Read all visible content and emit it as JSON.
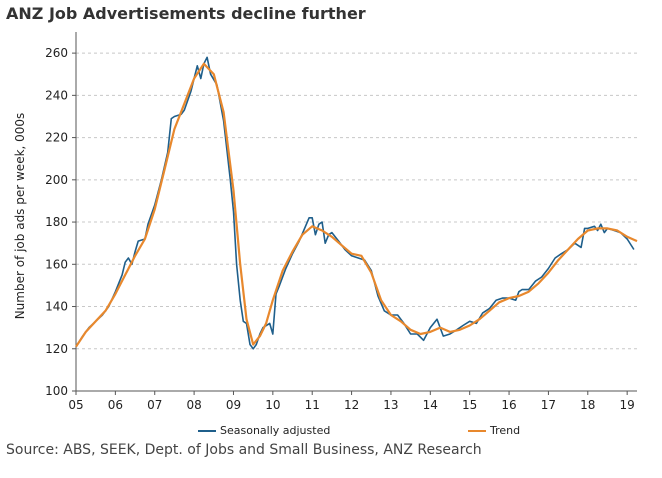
{
  "title": "ANZ Job Advertisements decline further",
  "source": "Source: ABS, SEEK, Dept. of Jobs and Small Business, ANZ Research",
  "chart_data": {
    "type": "line",
    "title": "ANZ Job Advertisements decline further",
    "xlabel": "",
    "ylabel": "Number of job ads per week, 000s",
    "ylim": [
      100,
      270
    ],
    "yticks": [
      100,
      120,
      140,
      160,
      180,
      200,
      220,
      240,
      260
    ],
    "xlim": [
      2005,
      2019.25
    ],
    "xticks": [
      2005,
      2006,
      2007,
      2008,
      2009,
      2010,
      2011,
      2012,
      2013,
      2014,
      2015,
      2016,
      2017,
      2018,
      2019
    ],
    "xtick_labels": [
      "05",
      "06",
      "07",
      "08",
      "09",
      "10",
      "11",
      "12",
      "13",
      "14",
      "15",
      "16",
      "17",
      "18",
      "19"
    ],
    "grid": "horizontal dashed",
    "series": [
      {
        "name": "Seasonally adjusted",
        "color": "#1f5f8b",
        "points": [
          [
            2005.0,
            121
          ],
          [
            2005.17,
            126
          ],
          [
            2005.33,
            130
          ],
          [
            2005.5,
            133
          ],
          [
            2005.67,
            136
          ],
          [
            2005.83,
            140
          ],
          [
            2006.0,
            147
          ],
          [
            2006.17,
            155
          ],
          [
            2006.25,
            161
          ],
          [
            2006.33,
            163
          ],
          [
            2006.42,
            160
          ],
          [
            2006.5,
            166
          ],
          [
            2006.58,
            171
          ],
          [
            2006.75,
            172
          ],
          [
            2006.83,
            179
          ],
          [
            2007.0,
            188
          ],
          [
            2007.17,
            200
          ],
          [
            2007.33,
            213
          ],
          [
            2007.42,
            229
          ],
          [
            2007.5,
            230
          ],
          [
            2007.67,
            231
          ],
          [
            2007.75,
            233
          ],
          [
            2007.92,
            242
          ],
          [
            2008.0,
            248
          ],
          [
            2008.08,
            254
          ],
          [
            2008.17,
            248
          ],
          [
            2008.25,
            255
          ],
          [
            2008.33,
            258
          ],
          [
            2008.42,
            250
          ],
          [
            2008.58,
            245
          ],
          [
            2008.75,
            228
          ],
          [
            2008.92,
            200
          ],
          [
            2009.0,
            185
          ],
          [
            2009.08,
            160
          ],
          [
            2009.17,
            143
          ],
          [
            2009.25,
            133
          ],
          [
            2009.33,
            132
          ],
          [
            2009.42,
            122
          ],
          [
            2009.5,
            120
          ],
          [
            2009.58,
            122
          ],
          [
            2009.67,
            127
          ],
          [
            2009.75,
            130
          ],
          [
            2009.92,
            132
          ],
          [
            2010.0,
            127
          ],
          [
            2010.08,
            146
          ],
          [
            2010.17,
            150
          ],
          [
            2010.33,
            158
          ],
          [
            2010.5,
            165
          ],
          [
            2010.67,
            171
          ],
          [
            2010.83,
            178
          ],
          [
            2010.92,
            182
          ],
          [
            2011.0,
            182
          ],
          [
            2011.08,
            174
          ],
          [
            2011.17,
            179
          ],
          [
            2011.25,
            180
          ],
          [
            2011.33,
            170
          ],
          [
            2011.42,
            174
          ],
          [
            2011.5,
            175
          ],
          [
            2011.67,
            171
          ],
          [
            2011.83,
            167
          ],
          [
            2012.0,
            164
          ],
          [
            2012.17,
            163
          ],
          [
            2012.33,
            162
          ],
          [
            2012.5,
            157
          ],
          [
            2012.67,
            145
          ],
          [
            2012.83,
            138
          ],
          [
            2013.0,
            136
          ],
          [
            2013.17,
            136
          ],
          [
            2013.33,
            132
          ],
          [
            2013.5,
            127
          ],
          [
            2013.67,
            127
          ],
          [
            2013.83,
            124
          ],
          [
            2014.0,
            130
          ],
          [
            2014.17,
            134
          ],
          [
            2014.33,
            126
          ],
          [
            2014.5,
            127
          ],
          [
            2014.67,
            129
          ],
          [
            2014.83,
            131
          ],
          [
            2015.0,
            133
          ],
          [
            2015.17,
            132
          ],
          [
            2015.33,
            137
          ],
          [
            2015.5,
            139
          ],
          [
            2015.67,
            143
          ],
          [
            2015.83,
            144
          ],
          [
            2016.0,
            144
          ],
          [
            2016.17,
            143
          ],
          [
            2016.25,
            147
          ],
          [
            2016.33,
            148
          ],
          [
            2016.5,
            148
          ],
          [
            2016.67,
            152
          ],
          [
            2016.83,
            154
          ],
          [
            2017.0,
            158
          ],
          [
            2017.17,
            163
          ],
          [
            2017.33,
            165
          ],
          [
            2017.5,
            167
          ],
          [
            2017.67,
            170
          ],
          [
            2017.83,
            168
          ],
          [
            2017.92,
            177
          ],
          [
            2018.0,
            177
          ],
          [
            2018.17,
            178
          ],
          [
            2018.25,
            176
          ],
          [
            2018.33,
            179
          ],
          [
            2018.42,
            175
          ],
          [
            2018.5,
            177
          ],
          [
            2018.67,
            176
          ],
          [
            2018.83,
            175
          ],
          [
            2019.0,
            172
          ],
          [
            2019.17,
            167
          ]
        ]
      },
      {
        "name": "Trend",
        "color": "#e8882d",
        "points": [
          [
            2005.0,
            121
          ],
          [
            2005.25,
            128
          ],
          [
            2005.5,
            133
          ],
          [
            2005.75,
            138
          ],
          [
            2006.0,
            146
          ],
          [
            2006.25,
            155
          ],
          [
            2006.5,
            164
          ],
          [
            2006.75,
            172
          ],
          [
            2007.0,
            186
          ],
          [
            2007.25,
            205
          ],
          [
            2007.5,
            224
          ],
          [
            2007.75,
            236
          ],
          [
            2008.0,
            248
          ],
          [
            2008.25,
            255
          ],
          [
            2008.5,
            250
          ],
          [
            2008.75,
            232
          ],
          [
            2009.0,
            195
          ],
          [
            2009.17,
            160
          ],
          [
            2009.33,
            134
          ],
          [
            2009.5,
            122
          ],
          [
            2009.67,
            126
          ],
          [
            2009.83,
            132
          ],
          [
            2010.0,
            143
          ],
          [
            2010.25,
            157
          ],
          [
            2010.5,
            166
          ],
          [
            2010.75,
            174
          ],
          [
            2011.0,
            178
          ],
          [
            2011.25,
            176
          ],
          [
            2011.5,
            173
          ],
          [
            2011.75,
            169
          ],
          [
            2012.0,
            165
          ],
          [
            2012.25,
            164
          ],
          [
            2012.5,
            156
          ],
          [
            2012.75,
            143
          ],
          [
            2013.0,
            136
          ],
          [
            2013.25,
            133
          ],
          [
            2013.5,
            129
          ],
          [
            2013.75,
            127
          ],
          [
            2014.0,
            128
          ],
          [
            2014.25,
            130
          ],
          [
            2014.5,
            128
          ],
          [
            2014.75,
            129
          ],
          [
            2015.0,
            131
          ],
          [
            2015.25,
            134
          ],
          [
            2015.5,
            138
          ],
          [
            2015.75,
            142
          ],
          [
            2016.0,
            144
          ],
          [
            2016.25,
            145
          ],
          [
            2016.5,
            147
          ],
          [
            2016.75,
            151
          ],
          [
            2017.0,
            156
          ],
          [
            2017.25,
            162
          ],
          [
            2017.5,
            167
          ],
          [
            2017.75,
            172
          ],
          [
            2018.0,
            176
          ],
          [
            2018.25,
            177
          ],
          [
            2018.5,
            177
          ],
          [
            2018.75,
            176
          ],
          [
            2019.0,
            173
          ],
          [
            2019.25,
            171
          ]
        ]
      }
    ]
  }
}
